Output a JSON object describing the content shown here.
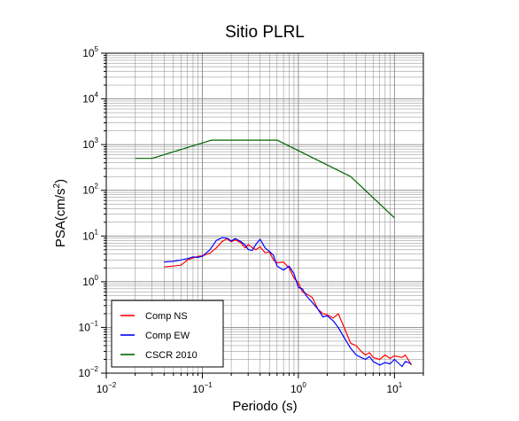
{
  "chart_data": {
    "type": "line",
    "title": "Sitio PLRL",
    "xlabel": "Periodo (s)",
    "ylabel": {
      "main": "PSA(cm/s",
      "exp": "2",
      "close": ")"
    },
    "xscale": "log",
    "yscale": "log",
    "xlim": [
      0.01,
      20
    ],
    "ylim": [
      0.01,
      100000
    ],
    "x_ticks": [
      {
        "value": 0.01,
        "base": "10",
        "exp": "−2"
      },
      {
        "value": 0.1,
        "base": "10",
        "exp": "−1"
      },
      {
        "value": 1,
        "base": "10",
        "exp": "0"
      },
      {
        "value": 10,
        "base": "10",
        "exp": "1"
      }
    ],
    "y_ticks": [
      {
        "value": 0.01,
        "base": "10",
        "exp": "−2"
      },
      {
        "value": 0.1,
        "base": "10",
        "exp": "−1"
      },
      {
        "value": 1,
        "base": "10",
        "exp": "0"
      },
      {
        "value": 10,
        "base": "10",
        "exp": "1"
      },
      {
        "value": 100,
        "base": "10",
        "exp": "2"
      },
      {
        "value": 1000,
        "base": "10",
        "exp": "3"
      },
      {
        "value": 10000,
        "base": "10",
        "exp": "4"
      },
      {
        "value": 100000,
        "base": "10",
        "exp": "5"
      }
    ],
    "grid": true,
    "legend_position": "bottom-left",
    "series": [
      {
        "name": "Comp NS",
        "color": "#ff0000",
        "points": [
          [
            0.04,
            2.1
          ],
          [
            0.05,
            2.2
          ],
          [
            0.06,
            2.3
          ],
          [
            0.07,
            3.0
          ],
          [
            0.08,
            3.3
          ],
          [
            0.09,
            3.6
          ],
          [
            0.1,
            3.7
          ],
          [
            0.12,
            4.2
          ],
          [
            0.14,
            5.5
          ],
          [
            0.16,
            7.5
          ],
          [
            0.18,
            8.7
          ],
          [
            0.2,
            7.5
          ],
          [
            0.22,
            8.2
          ],
          [
            0.25,
            7.2
          ],
          [
            0.28,
            5.5
          ],
          [
            0.3,
            6.5
          ],
          [
            0.33,
            5.6
          ],
          [
            0.36,
            5.0
          ],
          [
            0.4,
            5.8
          ],
          [
            0.45,
            4.3
          ],
          [
            0.5,
            4.5
          ],
          [
            0.55,
            3.0
          ],
          [
            0.6,
            2.6
          ],
          [
            0.7,
            2.7
          ],
          [
            0.8,
            2.0
          ],
          [
            0.9,
            1.2
          ],
          [
            1.0,
            0.95
          ],
          [
            1.1,
            0.6
          ],
          [
            1.2,
            0.55
          ],
          [
            1.4,
            0.45
          ],
          [
            1.6,
            0.25
          ],
          [
            1.8,
            0.2
          ],
          [
            2.0,
            0.19
          ],
          [
            2.3,
            0.16
          ],
          [
            2.6,
            0.2
          ],
          [
            3.0,
            0.1
          ],
          [
            3.5,
            0.045
          ],
          [
            4.0,
            0.04
          ],
          [
            4.5,
            0.03
          ],
          [
            5.0,
            0.025
          ],
          [
            5.5,
            0.028
          ],
          [
            6.0,
            0.022
          ],
          [
            7.0,
            0.02
          ],
          [
            8.0,
            0.025
          ],
          [
            9.0,
            0.021
          ],
          [
            10.0,
            0.024
          ],
          [
            12.0,
            0.022
          ],
          [
            13.0,
            0.025
          ],
          [
            15.0,
            0.015
          ]
        ]
      },
      {
        "name": "Comp EW",
        "color": "#0000ff",
        "points": [
          [
            0.04,
            2.7
          ],
          [
            0.05,
            2.8
          ],
          [
            0.06,
            3.0
          ],
          [
            0.07,
            3.2
          ],
          [
            0.08,
            3.5
          ],
          [
            0.09,
            3.4
          ],
          [
            0.1,
            3.6
          ],
          [
            0.12,
            5.0
          ],
          [
            0.14,
            8.0
          ],
          [
            0.16,
            9.2
          ],
          [
            0.18,
            9.0
          ],
          [
            0.2,
            7.8
          ],
          [
            0.22,
            8.8
          ],
          [
            0.25,
            7.6
          ],
          [
            0.28,
            6.3
          ],
          [
            0.3,
            5.1
          ],
          [
            0.33,
            4.8
          ],
          [
            0.36,
            6.5
          ],
          [
            0.4,
            8.5
          ],
          [
            0.45,
            5.5
          ],
          [
            0.5,
            4.6
          ],
          [
            0.55,
            3.8
          ],
          [
            0.6,
            2.2
          ],
          [
            0.7,
            1.8
          ],
          [
            0.8,
            2.2
          ],
          [
            0.9,
            1.5
          ],
          [
            1.0,
            0.75
          ],
          [
            1.1,
            0.7
          ],
          [
            1.2,
            0.5
          ],
          [
            1.4,
            0.35
          ],
          [
            1.6,
            0.25
          ],
          [
            1.8,
            0.17
          ],
          [
            2.0,
            0.18
          ],
          [
            2.3,
            0.14
          ],
          [
            2.6,
            0.1
          ],
          [
            3.0,
            0.06
          ],
          [
            3.5,
            0.035
          ],
          [
            4.0,
            0.025
          ],
          [
            4.5,
            0.022
          ],
          [
            5.0,
            0.02
          ],
          [
            5.5,
            0.023
          ],
          [
            6.0,
            0.018
          ],
          [
            7.0,
            0.015
          ],
          [
            8.0,
            0.017
          ],
          [
            9.0,
            0.016
          ],
          [
            10.0,
            0.02
          ],
          [
            12.0,
            0.014
          ],
          [
            13.0,
            0.018
          ],
          [
            15.0,
            0.016
          ]
        ]
      },
      {
        "name": "CSCR 2010",
        "color": "#006400",
        "points": [
          [
            0.02,
            500
          ],
          [
            0.03,
            500
          ],
          [
            0.125,
            1250
          ],
          [
            0.6,
            1250
          ],
          [
            3.5,
            200
          ],
          [
            10.0,
            25
          ]
        ]
      }
    ]
  }
}
